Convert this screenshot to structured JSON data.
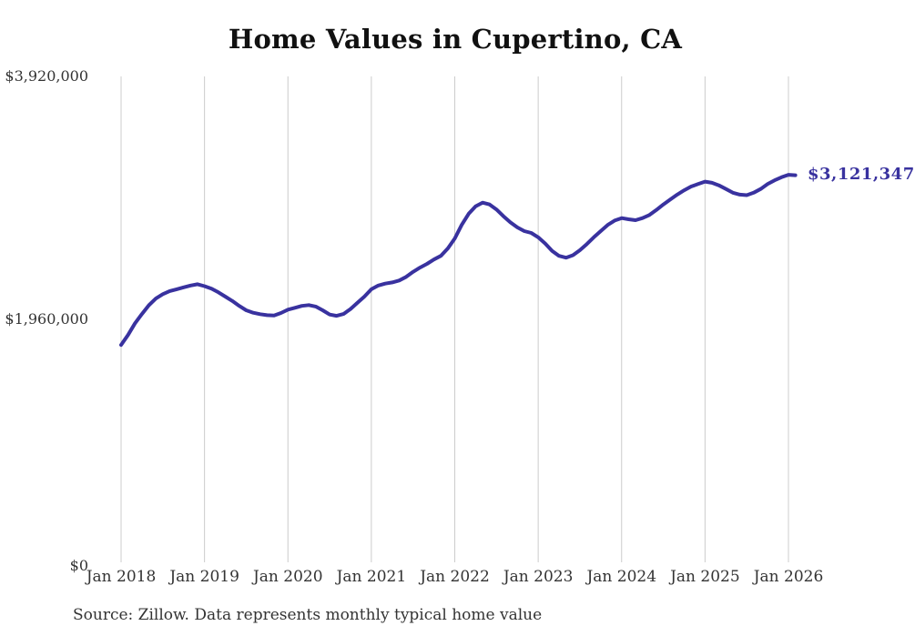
{
  "chart_data": {
    "type": "line",
    "title": "Home Values in Cupertino, CA",
    "xlabel": "",
    "ylabel": "",
    "ylim": [
      0,
      3920000
    ],
    "grid": "vertical-only",
    "grid_color": "#cccccc",
    "x_tick_labels": [
      "Jan 2018",
      "Jan 2019",
      "Jan 2020",
      "Jan 2021",
      "Jan 2022",
      "Jan 2023",
      "Jan 2024",
      "Jan 2025",
      "Jan 2026"
    ],
    "x_months_start": "Jan 2018",
    "x_months_end": "Feb 2026",
    "months_per_tick": 12,
    "y_ticks": [
      {
        "label": "$3,920,000",
        "value": 3920000
      },
      {
        "label": "$1,960,000",
        "value": 1960000
      },
      {
        "label": "$0",
        "value": 0
      }
    ],
    "series": [
      {
        "name": "Monthly typical home value",
        "color": "#39329f",
        "values": [
          1750000,
          1830000,
          1925000,
          2000000,
          2070000,
          2125000,
          2160000,
          2185000,
          2200000,
          2215000,
          2230000,
          2240000,
          2225000,
          2205000,
          2175000,
          2140000,
          2105000,
          2065000,
          2030000,
          2010000,
          1998000,
          1990000,
          1988000,
          2008000,
          2035000,
          2050000,
          2065000,
          2072000,
          2060000,
          2030000,
          1995000,
          1985000,
          2000000,
          2040000,
          2090000,
          2140000,
          2200000,
          2230000,
          2245000,
          2255000,
          2270000,
          2300000,
          2340000,
          2375000,
          2405000,
          2440000,
          2470000,
          2530000,
          2610000,
          2720000,
          2810000,
          2870000,
          2900000,
          2885000,
          2845000,
          2790000,
          2740000,
          2700000,
          2670000,
          2655000,
          2620000,
          2570000,
          2510000,
          2470000,
          2455000,
          2475000,
          2515000,
          2565000,
          2620000,
          2670000,
          2720000,
          2755000,
          2775000,
          2765000,
          2758000,
          2775000,
          2800000,
          2840000,
          2885000,
          2925000,
          2965000,
          3000000,
          3030000,
          3050000,
          3070000,
          3060000,
          3040000,
          3010000,
          2980000,
          2965000,
          2960000,
          2980000,
          3010000,
          3050000,
          3080000,
          3105000,
          3125000,
          3121347
        ]
      }
    ],
    "end_label": "$3,121,347",
    "end_label_color": "#39329f",
    "last_value": 3121347
  },
  "source_note": "Source: Zillow. Data represents monthly typical home value"
}
